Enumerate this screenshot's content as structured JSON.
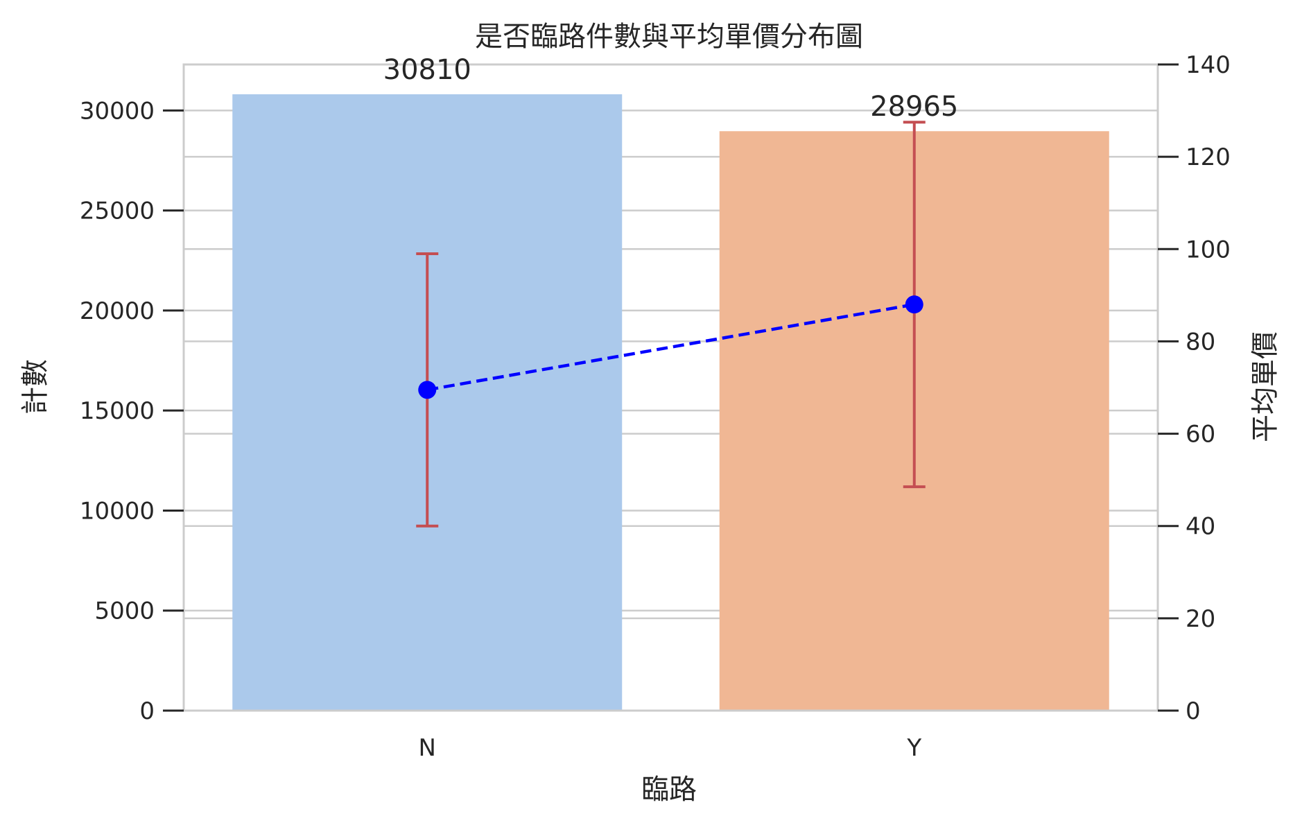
{
  "chart_data": {
    "type": "bar",
    "title": "是否臨路件數與平均單價分布圖",
    "xlabel": "臨路",
    "ylabel": "計數",
    "y2label": "平均單價",
    "categories": [
      "N",
      "Y"
    ],
    "ylim": [
      0,
      32300
    ],
    "yticks": [
      0,
      5000,
      10000,
      15000,
      20000,
      25000,
      30000
    ],
    "y2lim": [
      0,
      140
    ],
    "y2ticks": [
      0,
      20,
      40,
      60,
      80,
      100,
      120,
      140
    ],
    "grid": true,
    "series": [
      {
        "kind": "bar",
        "axis": "left",
        "values": [
          30810,
          28965
        ],
        "colors": [
          "#abc9eb",
          "#f0b794"
        ],
        "data_labels": [
          "30810",
          "28965"
        ]
      },
      {
        "kind": "line",
        "axis": "right",
        "style": "dashed",
        "marker": "circle",
        "color": "#0000ff",
        "values": [
          69.5,
          88.0
        ],
        "error_color": "#c44e52",
        "error_low": [
          40.0,
          48.5
        ],
        "error_high": [
          99.0,
          127.5
        ]
      }
    ]
  }
}
